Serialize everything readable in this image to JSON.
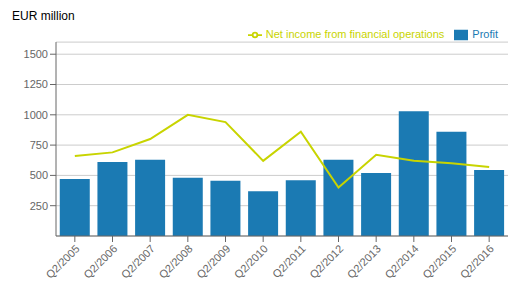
{
  "chart_data": {
    "type": "bar",
    "y_label": "EUR million",
    "categories": [
      "Q2/2005",
      "Q2/2006",
      "Q2/2007",
      "Q2/2008",
      "Q2/2009",
      "Q2/2010",
      "Q2/2011",
      "Q2/2012",
      "Q2/2013",
      "Q2/2014",
      "Q2/2015",
      "Q2/2016"
    ],
    "series": [
      {
        "name": "Profit",
        "type": "bar",
        "color": "#1b7ab3",
        "values": [
          470,
          610,
          630,
          480,
          455,
          370,
          460,
          630,
          520,
          1030,
          860,
          545
        ]
      },
      {
        "name": "Net income from financial operations",
        "type": "line",
        "color": "#c8d400",
        "values": [
          660,
          690,
          800,
          1000,
          940,
          620,
          860,
          400,
          670,
          620,
          600,
          570
        ]
      }
    ],
    "ylim": [
      0,
      1600
    ],
    "yticks": [
      250,
      500,
      750,
      1000,
      1250,
      1500
    ],
    "grid": true,
    "legend": "upper right"
  }
}
